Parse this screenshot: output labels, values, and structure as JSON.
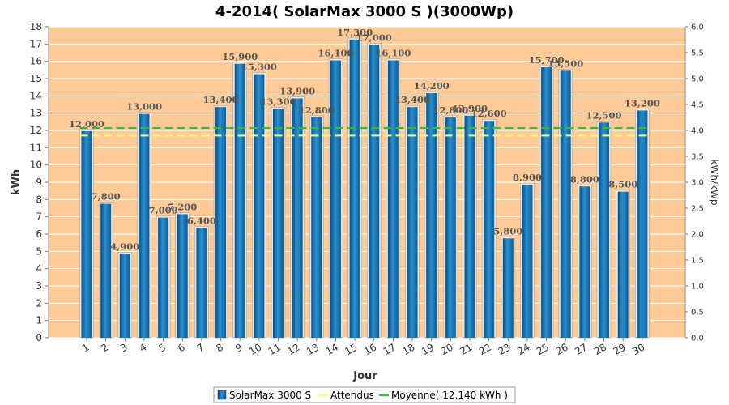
{
  "chart_data": {
    "type": "bar",
    "title": "4-2014( SolarMax 3000 S )(3000Wp)",
    "xlabel": "Jour",
    "ylabel": "kWh",
    "ylabel_right": "kWh/kWp",
    "categories": [
      "1",
      "2",
      "3",
      "4",
      "5",
      "6",
      "7",
      "8",
      "9",
      "10",
      "11",
      "12",
      "13",
      "14",
      "15",
      "16",
      "17",
      "18",
      "19",
      "20",
      "21",
      "22",
      "23",
      "24",
      "25",
      "26",
      "27",
      "28",
      "29",
      "30"
    ],
    "series": [
      {
        "name": "SolarMax 3000 S",
        "color": "#1a6fa8",
        "values": [
          12.0,
          7.8,
          4.9,
          13.0,
          7.0,
          7.2,
          6.4,
          13.4,
          15.9,
          15.3,
          13.3,
          13.9,
          12.8,
          16.1,
          17.3,
          17.0,
          16.1,
          13.4,
          14.2,
          12.8,
          12.9,
          12.6,
          5.8,
          8.9,
          15.7,
          15.5,
          8.8,
          12.5,
          8.5,
          13.2
        ],
        "labels": [
          "12,000",
          "7,800",
          "4,900",
          "13,000",
          "7,000",
          "7,200",
          "6,400",
          "13,400",
          "15,900",
          "15,300",
          "13,300",
          "13,900",
          "12,800",
          "16,100",
          "17,300",
          "17,000",
          "16,100",
          "13,400",
          "14,200",
          "12,800",
          "12,900",
          "12,600",
          "5,800",
          "8,900",
          "15,700",
          "15,500",
          "8,800",
          "12,500",
          "8,500",
          "13,200"
        ]
      }
    ],
    "lines": [
      {
        "name": "Attendus",
        "value": 11.7,
        "color": "#ffff66"
      },
      {
        "name": "Moyenne( 12,140 kWh )",
        "value": 12.14,
        "color": "#33bb33"
      }
    ],
    "ylim": [
      0,
      18
    ],
    "yticks": [
      "0",
      "1",
      "2",
      "3",
      "4",
      "5",
      "6",
      "7",
      "8",
      "9",
      "10",
      "11",
      "12",
      "13",
      "14",
      "15",
      "16",
      "17",
      "18"
    ],
    "ylim_right": [
      0,
      6.0
    ],
    "yticks_right": [
      "0,0",
      "0,5",
      "1,0",
      "1,5",
      "2,0",
      "2,5",
      "3,0",
      "3,5",
      "4,0",
      "4,5",
      "5,0",
      "5,5",
      "6,0"
    ],
    "plot_background": "#ffcc99",
    "grid": true,
    "legend_position": "bottom"
  }
}
